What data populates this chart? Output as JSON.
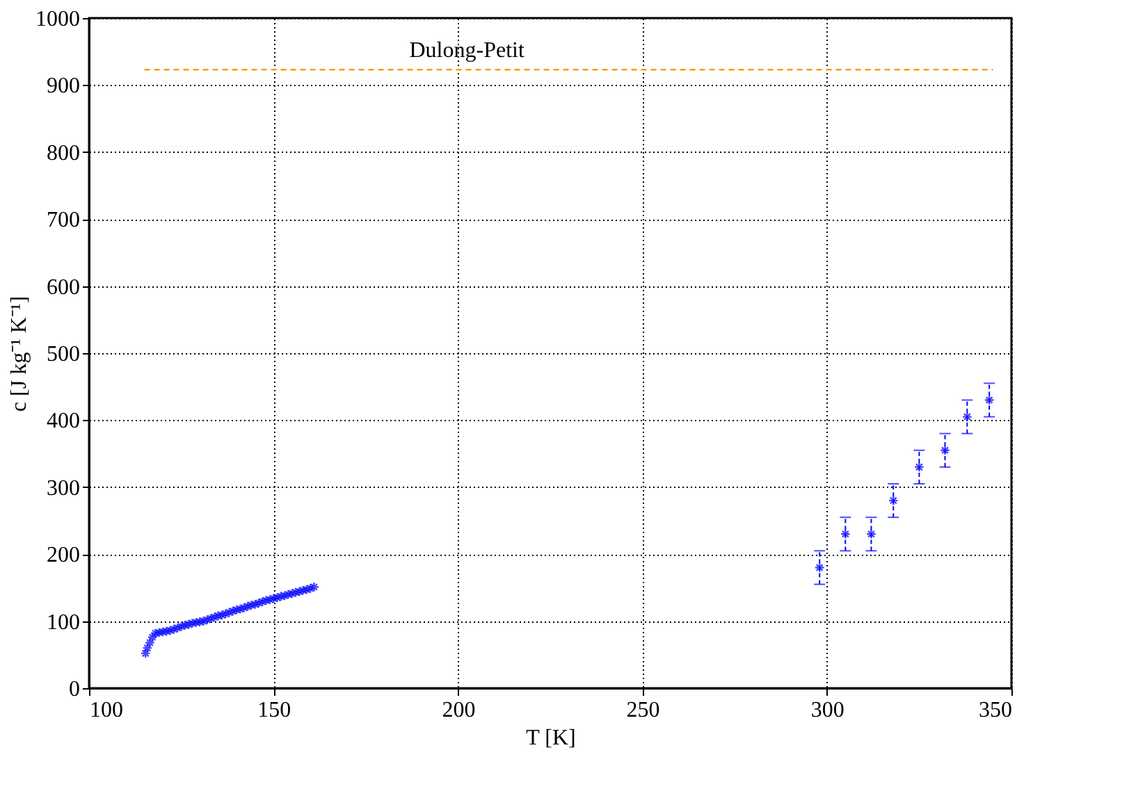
{
  "chart_data": {
    "type": "scatter",
    "xlabel": "T [K]",
    "ylabel": "c [J kg⁻¹ K⁻¹]",
    "xlim": [
      100,
      350
    ],
    "xticks": [
      100,
      150,
      200,
      250,
      300,
      350
    ],
    "ylim": [
      0,
      1000
    ],
    "yticks": [
      0,
      100,
      200,
      300,
      400,
      500,
      600,
      700,
      800,
      900,
      1000
    ],
    "grid": true,
    "marker": "cross",
    "series": [
      {
        "color": "#0000ff",
        "x": [
          115.3,
          115.8,
          116.5,
          117.2,
          118,
          119,
          120,
          121,
          122,
          123,
          124,
          125,
          126,
          127,
          128,
          129,
          130,
          131,
          132,
          133,
          134,
          135,
          136,
          137,
          138,
          139,
          140,
          141,
          142,
          143,
          144,
          145,
          146,
          147,
          148,
          149,
          150,
          151,
          152,
          153,
          154,
          155,
          156,
          157,
          158,
          159,
          160,
          161
        ],
        "values": [
          52,
          60,
          68,
          76,
          82,
          83,
          84,
          85,
          86,
          88,
          90,
          92,
          94,
          95,
          97,
          98,
          99,
          100,
          102,
          104,
          106,
          108,
          109,
          111,
          113,
          115,
          117,
          118,
          120,
          122,
          124,
          125,
          127,
          129,
          131,
          132,
          134,
          135,
          137,
          138,
          140,
          141,
          143,
          144,
          146,
          147,
          149,
          151
        ]
      },
      {
        "color": "#0000ff",
        "x": [
          298,
          305,
          312,
          318,
          325,
          332,
          338,
          344
        ],
        "values": [
          180,
          230,
          230,
          280,
          330,
          355,
          405,
          430
        ],
        "errors": [
          25,
          25,
          25,
          25,
          25,
          25,
          25,
          25
        ]
      },
      {
        "type": "line",
        "name": "Dulong-Petit",
        "color": "#f0a000",
        "line_style": "dashed",
        "marker": "none",
        "x": [
          115,
          345
        ],
        "values": [
          923,
          923
        ]
      }
    ]
  }
}
